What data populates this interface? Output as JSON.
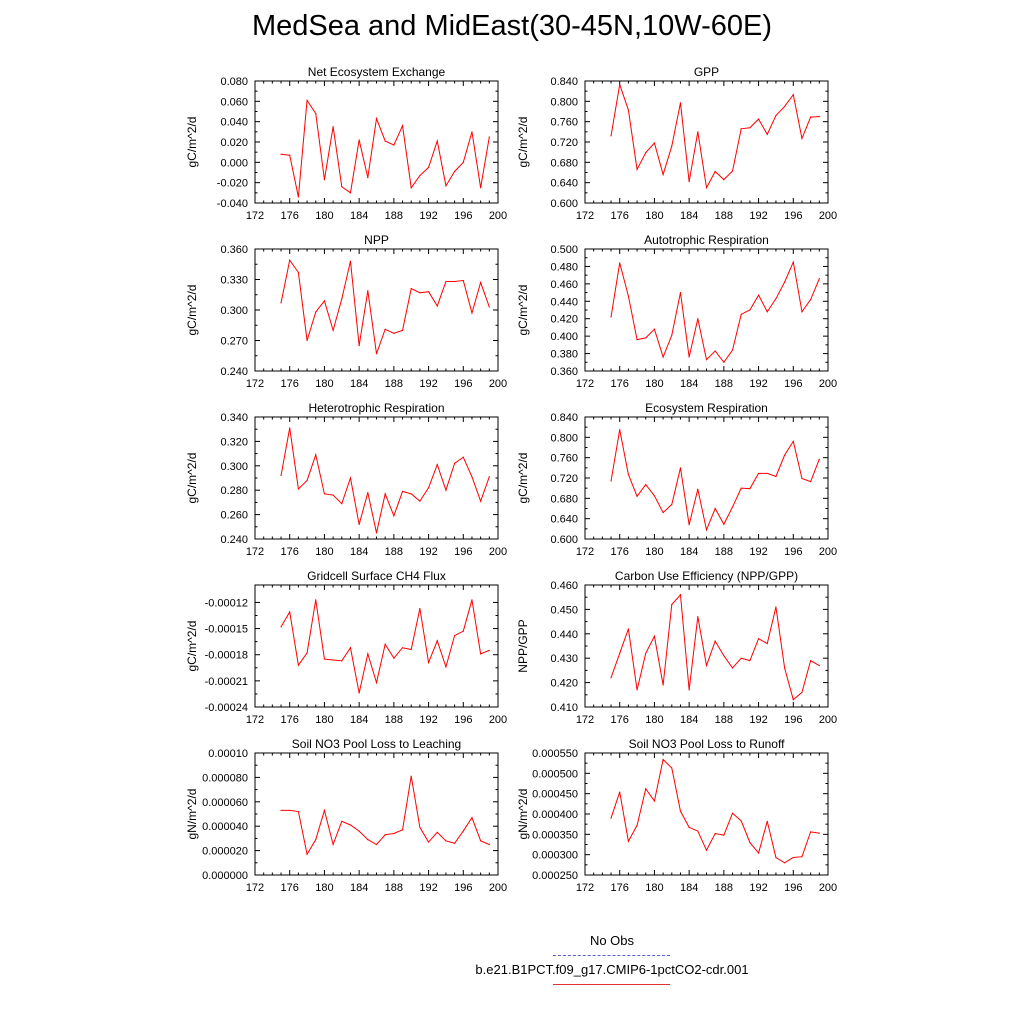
{
  "page": {
    "title": "MedSea and MidEast(30-45N,10W-60E)",
    "legend": [
      {
        "label": "No Obs",
        "color": "#5b5bd6",
        "style": "dashed"
      },
      {
        "label": "b.e21.B1PCT.f09_g17.CMIP6-1pctCO2-cdr.001",
        "color": "#ff0000",
        "style": "solid"
      }
    ]
  },
  "chart_data": [
    {
      "type": "line",
      "title": "Net Ecosystem Exchange",
      "xlabel": "",
      "ylabel": "gC/m^2/d",
      "xlim": [
        172,
        200
      ],
      "ylim": [
        -0.04,
        0.08
      ],
      "xticks": [
        "172",
        "176",
        "180",
        "184",
        "188",
        "192",
        "196",
        "200"
      ],
      "yticks": [
        "-0.040",
        "-0.020",
        "0.000",
        "0.020",
        "0.040",
        "0.060",
        "0.080"
      ],
      "series": [
        {
          "color": "#ff0000",
          "x": [
            175,
            176,
            177,
            178,
            179,
            180,
            181,
            182,
            183,
            184,
            185,
            186,
            187,
            188,
            189,
            190,
            191,
            192,
            193,
            194,
            195,
            196,
            197,
            198,
            199
          ],
          "values": [
            0.008,
            0.007,
            -0.034,
            0.061,
            0.048,
            -0.017,
            0.035,
            -0.024,
            -0.03,
            0.022,
            -0.015,
            0.043,
            0.021,
            0.017,
            0.036,
            -0.025,
            -0.013,
            -0.005,
            0.021,
            -0.023,
            -0.009,
            0.0,
            0.03,
            -0.025,
            0.025
          ]
        }
      ]
    },
    {
      "type": "line",
      "title": "GPP",
      "xlabel": "",
      "ylabel": "gC/m^2/d",
      "xlim": [
        172,
        200
      ],
      "ylim": [
        0.6,
        0.84
      ],
      "xticks": [
        "172",
        "176",
        "180",
        "184",
        "188",
        "192",
        "196",
        "200"
      ],
      "yticks": [
        "0.600",
        "0.640",
        "0.680",
        "0.720",
        "0.760",
        "0.800",
        "0.840"
      ],
      "series": [
        {
          "color": "#ff0000",
          "x": [
            175,
            176,
            177,
            178,
            179,
            180,
            181,
            182,
            183,
            184,
            185,
            186,
            187,
            188,
            189,
            190,
            191,
            192,
            193,
            194,
            195,
            196,
            197,
            198,
            199
          ],
          "values": [
            0.732,
            0.833,
            0.783,
            0.666,
            0.699,
            0.718,
            0.656,
            0.712,
            0.797,
            0.642,
            0.74,
            0.63,
            0.662,
            0.646,
            0.663,
            0.746,
            0.748,
            0.765,
            0.735,
            0.772,
            0.79,
            0.813,
            0.727,
            0.769,
            0.77
          ]
        }
      ]
    },
    {
      "type": "line",
      "title": "NPP",
      "xlabel": "",
      "ylabel": "gC/m^2/d",
      "xlim": [
        172,
        200
      ],
      "ylim": [
        0.24,
        0.36
      ],
      "xticks": [
        "172",
        "176",
        "180",
        "184",
        "188",
        "192",
        "196",
        "200"
      ],
      "yticks": [
        "0.240",
        "0.270",
        "0.300",
        "0.330",
        "0.360"
      ],
      "series": [
        {
          "color": "#ff0000",
          "x": [
            175,
            176,
            177,
            178,
            179,
            180,
            181,
            182,
            183,
            184,
            185,
            186,
            187,
            188,
            189,
            190,
            191,
            192,
            193,
            194,
            195,
            196,
            197,
            198,
            199
          ],
          "values": [
            0.307,
            0.349,
            0.337,
            0.27,
            0.298,
            0.309,
            0.28,
            0.311,
            0.348,
            0.265,
            0.319,
            0.257,
            0.281,
            0.277,
            0.28,
            0.321,
            0.317,
            0.318,
            0.304,
            0.328,
            0.328,
            0.329,
            0.297,
            0.327,
            0.303
          ]
        }
      ]
    },
    {
      "type": "line",
      "title": "Autotrophic Respiration",
      "xlabel": "",
      "ylabel": "gC/m^2/d",
      "xlim": [
        172,
        200
      ],
      "ylim": [
        0.36,
        0.5
      ],
      "xticks": [
        "172",
        "176",
        "180",
        "184",
        "188",
        "192",
        "196",
        "200"
      ],
      "yticks": [
        "0.360",
        "0.380",
        "0.400",
        "0.420",
        "0.440",
        "0.460",
        "0.480",
        "0.500"
      ],
      "series": [
        {
          "color": "#ff0000",
          "x": [
            175,
            176,
            177,
            178,
            179,
            180,
            181,
            182,
            183,
            184,
            185,
            186,
            187,
            188,
            189,
            190,
            191,
            192,
            193,
            194,
            195,
            196,
            197,
            198,
            199
          ],
          "values": [
            0.422,
            0.484,
            0.446,
            0.396,
            0.398,
            0.408,
            0.376,
            0.401,
            0.45,
            0.376,
            0.42,
            0.373,
            0.383,
            0.37,
            0.384,
            0.425,
            0.43,
            0.447,
            0.428,
            0.443,
            0.462,
            0.485,
            0.428,
            0.442,
            0.466
          ]
        }
      ]
    },
    {
      "type": "line",
      "title": "Heterotrophic Respiration",
      "xlabel": "",
      "ylabel": "gC/m^2/d",
      "xlim": [
        172,
        200
      ],
      "ylim": [
        0.24,
        0.34
      ],
      "xticks": [
        "172",
        "176",
        "180",
        "184",
        "188",
        "192",
        "196",
        "200"
      ],
      "yticks": [
        "0.240",
        "0.260",
        "0.280",
        "0.300",
        "0.320",
        "0.340"
      ],
      "series": [
        {
          "color": "#ff0000",
          "x": [
            175,
            176,
            177,
            178,
            179,
            180,
            181,
            182,
            183,
            184,
            185,
            186,
            187,
            188,
            189,
            190,
            191,
            192,
            193,
            194,
            195,
            196,
            197,
            198,
            199
          ],
          "values": [
            0.292,
            0.331,
            0.281,
            0.288,
            0.309,
            0.277,
            0.276,
            0.269,
            0.29,
            0.252,
            0.278,
            0.245,
            0.277,
            0.259,
            0.279,
            0.277,
            0.271,
            0.282,
            0.301,
            0.28,
            0.302,
            0.307,
            0.291,
            0.271,
            0.291
          ]
        }
      ]
    },
    {
      "type": "line",
      "title": "Ecosystem Respiration",
      "xlabel": "",
      "ylabel": "gC/m^2/d",
      "xlim": [
        172,
        200
      ],
      "ylim": [
        0.6,
        0.84
      ],
      "xticks": [
        "172",
        "176",
        "180",
        "184",
        "188",
        "192",
        "196",
        "200"
      ],
      "yticks": [
        "0.600",
        "0.640",
        "0.680",
        "0.720",
        "0.760",
        "0.800",
        "0.840"
      ],
      "series": [
        {
          "color": "#ff0000",
          "x": [
            175,
            176,
            177,
            178,
            179,
            180,
            181,
            182,
            183,
            184,
            185,
            186,
            187,
            188,
            189,
            190,
            191,
            192,
            193,
            194,
            195,
            196,
            197,
            198,
            199
          ],
          "values": [
            0.714,
            0.815,
            0.727,
            0.684,
            0.707,
            0.685,
            0.652,
            0.668,
            0.74,
            0.628,
            0.698,
            0.618,
            0.66,
            0.629,
            0.663,
            0.7,
            0.699,
            0.729,
            0.729,
            0.723,
            0.765,
            0.792,
            0.719,
            0.713,
            0.757
          ]
        }
      ]
    },
    {
      "type": "line",
      "title": "Gridcell Surface CH4 Flux",
      "xlabel": "",
      "ylabel": "gC/m^2/d",
      "xlim": [
        172,
        200
      ],
      "ylim": [
        -0.00024,
        -0.0001
      ],
      "xticks": [
        "172",
        "176",
        "180",
        "184",
        "188",
        "192",
        "196",
        "200"
      ],
      "yticks": [
        "-0.00024",
        "-0.00021",
        "-0.00018",
        "-0.00015",
        "-0.00012"
      ],
      "series": [
        {
          "color": "#ff0000",
          "x": [
            175,
            176,
            177,
            178,
            179,
            180,
            181,
            182,
            183,
            184,
            185,
            186,
            187,
            188,
            189,
            190,
            191,
            192,
            193,
            194,
            195,
            196,
            197,
            198,
            199
          ],
          "values": [
            -0.000148,
            -0.000131,
            -0.000192,
            -0.000178,
            -0.000117,
            -0.000185,
            -0.000186,
            -0.000187,
            -0.000172,
            -0.000224,
            -0.000179,
            -0.000212,
            -0.000168,
            -0.000184,
            -0.000172,
            -0.000174,
            -0.000127,
            -0.000189,
            -0.000164,
            -0.000194,
            -0.000158,
            -0.000153,
            -0.000117,
            -0.000179,
            -0.000175
          ]
        }
      ]
    },
    {
      "type": "line",
      "title": "Carbon Use Efficiency (NPP/GPP)",
      "xlabel": "",
      "ylabel": "NPP/GPP",
      "xlim": [
        172,
        200
      ],
      "ylim": [
        0.41,
        0.46
      ],
      "xticks": [
        "172",
        "176",
        "180",
        "184",
        "188",
        "192",
        "196",
        "200"
      ],
      "yticks": [
        "0.410",
        "0.420",
        "0.430",
        "0.440",
        "0.450",
        "0.460"
      ],
      "series": [
        {
          "color": "#ff0000",
          "x": [
            175,
            176,
            177,
            178,
            179,
            180,
            181,
            182,
            183,
            184,
            185,
            186,
            187,
            188,
            189,
            190,
            191,
            192,
            193,
            194,
            195,
            196,
            197,
            198,
            199
          ],
          "values": [
            0.422,
            0.432,
            0.442,
            0.417,
            0.432,
            0.439,
            0.419,
            0.452,
            0.456,
            0.417,
            0.447,
            0.427,
            0.437,
            0.431,
            0.426,
            0.43,
            0.429,
            0.438,
            0.436,
            0.451,
            0.426,
            0.413,
            0.416,
            0.429,
            0.427
          ]
        }
      ]
    },
    {
      "type": "line",
      "title": "Soil NO3 Pool Loss to Leaching",
      "xlabel": "",
      "ylabel": "gN/m^2/d",
      "xlim": [
        172,
        200
      ],
      "ylim": [
        0,
        0.0001
      ],
      "xticks": [
        "172",
        "176",
        "180",
        "184",
        "188",
        "192",
        "196",
        "200"
      ],
      "yticks": [
        "0.000000",
        "0.000020",
        "0.000040",
        "0.000060",
        "0.000080",
        "0.00010"
      ],
      "series": [
        {
          "color": "#ff0000",
          "x": [
            175,
            176,
            177,
            178,
            179,
            180,
            181,
            182,
            183,
            184,
            185,
            186,
            187,
            188,
            189,
            190,
            191,
            192,
            193,
            194,
            195,
            196,
            197,
            198,
            199
          ],
          "values": [
            5.3e-05,
            5.3e-05,
            5.2e-05,
            1.7e-05,
            2.9e-05,
            5.3e-05,
            2.5e-05,
            4.4e-05,
            4.1e-05,
            3.6e-05,
            2.9e-05,
            2.5e-05,
            3.3e-05,
            3.4e-05,
            3.7e-05,
            8.1e-05,
            3.9e-05,
            2.7e-05,
            3.5e-05,
            2.8e-05,
            2.6e-05,
            3.6e-05,
            4.7e-05,
            2.8e-05,
            2.5e-05
          ]
        }
      ]
    },
    {
      "type": "line",
      "title": "Soil NO3 Pool Loss to Runoff",
      "xlabel": "",
      "ylabel": "gN/m^2/d",
      "xlim": [
        172,
        200
      ],
      "ylim": [
        0.00025,
        0.00055
      ],
      "xticks": [
        "172",
        "176",
        "180",
        "184",
        "188",
        "192",
        "196",
        "200"
      ],
      "yticks": [
        "0.000250",
        "0.000300",
        "0.000350",
        "0.000400",
        "0.000450",
        "0.000500",
        "0.000550"
      ],
      "series": [
        {
          "color": "#ff0000",
          "x": [
            175,
            176,
            177,
            178,
            179,
            180,
            181,
            182,
            183,
            184,
            185,
            186,
            187,
            188,
            189,
            190,
            191,
            192,
            193,
            194,
            195,
            196,
            197,
            198,
            199
          ],
          "values": [
            0.00039,
            0.000454,
            0.000333,
            0.000372,
            0.000462,
            0.000432,
            0.000534,
            0.000513,
            0.000407,
            0.000367,
            0.000358,
            0.000311,
            0.000352,
            0.000348,
            0.000402,
            0.000383,
            0.00033,
            0.000304,
            0.000382,
            0.000293,
            0.00028,
            0.000293,
            0.000295,
            0.000356,
            0.000353
          ]
        }
      ]
    }
  ]
}
